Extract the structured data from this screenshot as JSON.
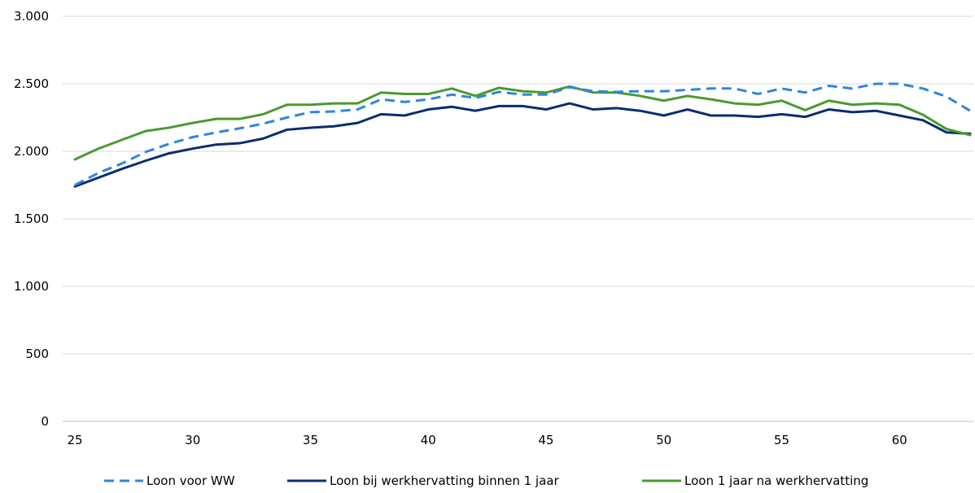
{
  "chart_data": {
    "type": "line",
    "x": [
      25,
      26,
      27,
      28,
      29,
      30,
      31,
      32,
      33,
      34,
      35,
      36,
      37,
      38,
      39,
      40,
      41,
      42,
      43,
      44,
      45,
      46,
      47,
      48,
      49,
      50,
      51,
      52,
      53,
      54,
      55,
      56,
      57,
      58,
      59,
      60,
      61,
      62,
      63
    ],
    "xlim": [
      25,
      63
    ],
    "ylim": [
      0,
      3000
    ],
    "x_ticks": [
      25,
      30,
      35,
      40,
      45,
      50,
      55,
      60
    ],
    "x_tick_labels": [
      "25",
      "30",
      "35",
      "40",
      "45",
      "50",
      "55",
      "60"
    ],
    "y_ticks": [
      0,
      500,
      1000,
      1500,
      2000,
      2500,
      3000
    ],
    "y_tick_labels": [
      "0",
      "500",
      "1.000",
      "1.500",
      "2.000",
      "2.500",
      "3.000"
    ],
    "grid": "horizontal",
    "legend_position": "bottom",
    "series": [
      {
        "name": "Loon voor WW",
        "color": "#2E86DE",
        "style": "dashed",
        "values": [
          1750,
          1840,
          1910,
          1995,
          2055,
          2105,
          2140,
          2170,
          2205,
          2250,
          2290,
          2295,
          2310,
          2385,
          2365,
          2385,
          2420,
          2395,
          2440,
          2420,
          2420,
          2475,
          2445,
          2440,
          2445,
          2445,
          2455,
          2465,
          2465,
          2425,
          2465,
          2435,
          2485,
          2465,
          2500,
          2500,
          2465,
          2405,
          2300
        ]
      },
      {
        "name": "Loon bij werkhervatting binnen 1 jaar",
        "color": "#0B2C6F",
        "style": "solid",
        "values": [
          1740,
          1805,
          1870,
          1930,
          1985,
          2020,
          2050,
          2060,
          2095,
          2160,
          2175,
          2185,
          2210,
          2275,
          2265,
          2310,
          2330,
          2300,
          2335,
          2335,
          2310,
          2355,
          2310,
          2320,
          2300,
          2265,
          2310,
          2265,
          2265,
          2255,
          2275,
          2255,
          2310,
          2290,
          2300,
          2265,
          2230,
          2140,
          2130
        ]
      },
      {
        "name": "Loon 1 jaar na werkhervatting",
        "color": "#4A9A2E",
        "style": "solid",
        "values": [
          1940,
          2020,
          2085,
          2150,
          2175,
          2210,
          2240,
          2240,
          2275,
          2345,
          2345,
          2355,
          2355,
          2435,
          2425,
          2425,
          2465,
          2410,
          2470,
          2445,
          2435,
          2480,
          2435,
          2435,
          2410,
          2375,
          2410,
          2385,
          2355,
          2345,
          2375,
          2305,
          2375,
          2345,
          2355,
          2345,
          2270,
          2165,
          2120
        ]
      }
    ]
  }
}
